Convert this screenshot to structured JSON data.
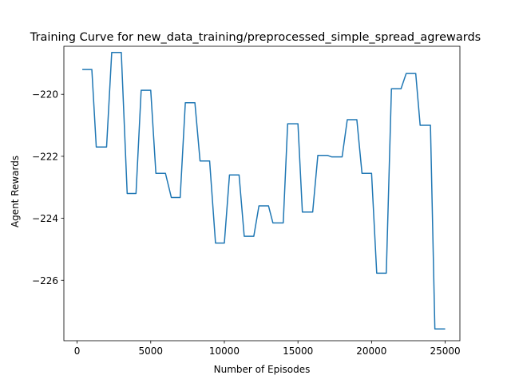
{
  "chart_data": {
    "type": "line",
    "title": "Training Curve for new_data_training/preprocessed_simple_spread_agrewards",
    "xlabel": "Number of Episodes",
    "ylabel": "Agent Rewards",
    "xlim": [
      -900,
      26000
    ],
    "ylim": [
      -227.95,
      -218.45
    ],
    "xticks": [
      0,
      5000,
      10000,
      15000,
      20000,
      25000
    ],
    "xtick_labels": [
      "0",
      "5000",
      "10000",
      "15000",
      "20000",
      "25000"
    ],
    "yticks": [
      -226,
      -224,
      -222,
      -220
    ],
    "ytick_labels": [
      "−226",
      "−224",
      "−222",
      "−220"
    ],
    "grid": false,
    "line_color": "#1f77b4",
    "series": [
      {
        "x": [
          350,
          1000,
          1300,
          2000,
          2350,
          3000,
          3400,
          4000,
          4350,
          5000,
          5350,
          6000,
          6400,
          7000,
          7350,
          8000,
          8350,
          9000,
          9400,
          10000,
          10350,
          11000,
          11350,
          12000,
          12350,
          13000,
          13300,
          14000,
          14300,
          15000,
          15300,
          16000,
          16350,
          17000,
          17300,
          18000,
          18350,
          19000,
          19350,
          20000,
          20350,
          21000,
          21350,
          22000,
          22350,
          23000,
          23300,
          24000,
          24300,
          25000
        ],
        "y": [
          -219.2,
          -219.2,
          -221.7,
          -221.7,
          -218.65,
          -218.65,
          -223.2,
          -223.2,
          -219.87,
          -219.87,
          -222.55,
          -222.55,
          -223.33,
          -223.33,
          -220.27,
          -220.27,
          -222.15,
          -222.15,
          -224.8,
          -224.8,
          -222.6,
          -222.6,
          -224.58,
          -224.58,
          -223.6,
          -223.6,
          -224.15,
          -224.15,
          -220.95,
          -220.95,
          -223.8,
          -223.8,
          -221.97,
          -221.97,
          -222.02,
          -222.02,
          -220.82,
          -220.82,
          -222.55,
          -222.55,
          -225.77,
          -225.77,
          -219.82,
          -219.82,
          -219.33,
          -219.33,
          -221.0,
          -221.0,
          -227.57,
          -227.57
        ]
      }
    ]
  }
}
